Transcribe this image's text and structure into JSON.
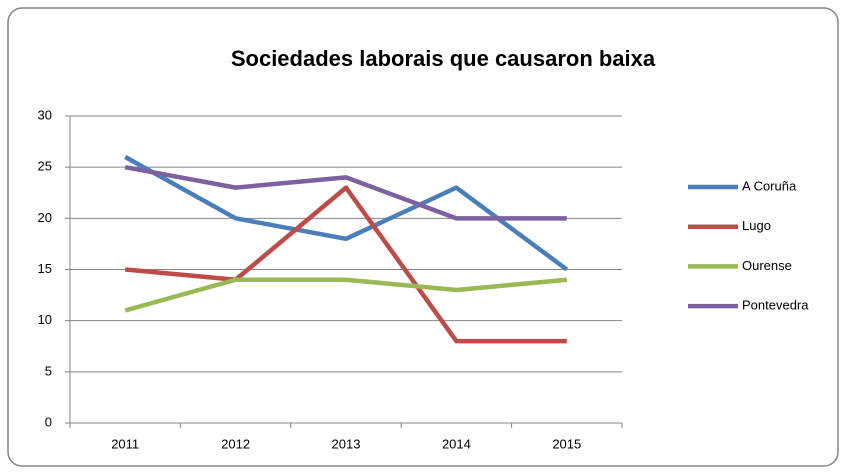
{
  "chart_data": {
    "type": "line",
    "title": "Sociedades laborais que causaron baixa",
    "categories": [
      "2011",
      "2012",
      "2013",
      "2014",
      "2015"
    ],
    "series": [
      {
        "name": "A Coruña",
        "color": "#4a7ebb",
        "values": [
          26,
          20,
          18,
          23,
          15
        ]
      },
      {
        "name": "Lugo",
        "color": "#be4b48",
        "values": [
          15,
          14,
          23,
          8,
          8
        ]
      },
      {
        "name": "Ourense",
        "color": "#98b954",
        "values": [
          11,
          14,
          14,
          13,
          14
        ]
      },
      {
        "name": "Pontevedra",
        "color": "#7d60a0",
        "values": [
          25,
          23,
          24,
          20,
          20
        ]
      }
    ],
    "ylim": [
      0,
      30
    ],
    "yticks": [
      0,
      5,
      10,
      15,
      20,
      25,
      30
    ],
    "grid": true,
    "legend": "right"
  }
}
